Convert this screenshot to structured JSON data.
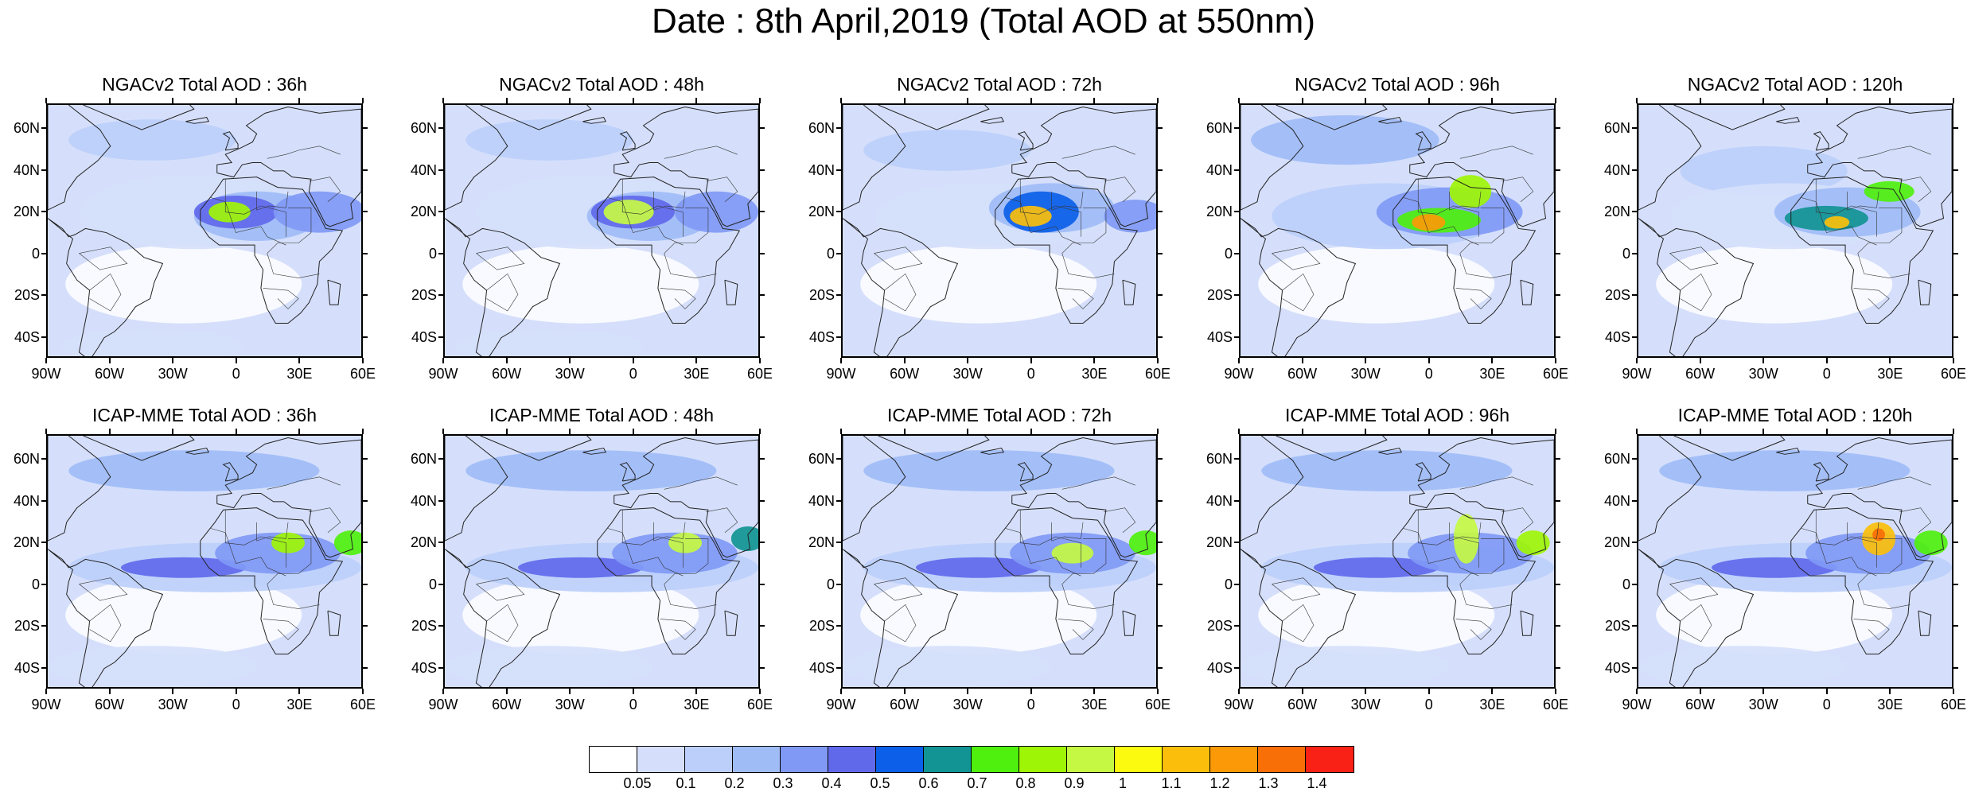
{
  "title": "Date : 8th April,2019 (Total AOD at 550nm)",
  "lat_labels": [
    "60N",
    "40N",
    "20N",
    "0",
    "20S",
    "40S"
  ],
  "lat_values": [
    60,
    40,
    20,
    0,
    -20,
    -40
  ],
  "lon_labels": [
    "90W",
    "60W",
    "30W",
    "0",
    "30E",
    "60E"
  ],
  "lon_values": [
    -90,
    -60,
    -30,
    0,
    30,
    60
  ],
  "map_extent": {
    "lon": [
      -90,
      60
    ],
    "lat": [
      -50,
      72
    ]
  },
  "panels": [
    {
      "title": "NGACv2 Total AOD : 36h",
      "model": "NGACv2",
      "lead": "36h"
    },
    {
      "title": "NGACv2 Total AOD : 48h",
      "model": "NGACv2",
      "lead": "48h"
    },
    {
      "title": "NGACv2 Total AOD : 72h",
      "model": "NGACv2",
      "lead": "72h"
    },
    {
      "title": "NGACv2 Total AOD : 96h",
      "model": "NGACv2",
      "lead": "96h"
    },
    {
      "title": "NGACv2 Total AOD : 120h",
      "model": "NGACv2",
      "lead": "120h"
    },
    {
      "title": "ICAP-MME Total AOD : 36h",
      "model": "ICAP-MME",
      "lead": "36h"
    },
    {
      "title": "ICAP-MME Total AOD : 48h",
      "model": "ICAP-MME",
      "lead": "48h"
    },
    {
      "title": "ICAP-MME Total AOD : 72h",
      "model": "ICAP-MME",
      "lead": "72h"
    },
    {
      "title": "ICAP-MME Total AOD : 96h",
      "model": "ICAP-MME",
      "lead": "96h"
    },
    {
      "title": "ICAP-MME Total AOD : 120h",
      "model": "ICAP-MME",
      "lead": "120h"
    }
  ],
  "colorbar": {
    "colors": [
      "#ffffff",
      "#d5dffb",
      "#bccffb",
      "#9fbcf7",
      "#8099f5",
      "#6169eb",
      "#0b5fe8",
      "#119493",
      "#4ff00d",
      "#9ef506",
      "#c5f843",
      "#fbfa0f",
      "#fbbf0b",
      "#fb9906",
      "#f86e07",
      "#f92115"
    ],
    "labels": [
      "0.05",
      "0.1",
      "0.2",
      "0.3",
      "0.4",
      "0.5",
      "0.6",
      "0.7",
      "0.8",
      "0.9",
      "1",
      "1.1",
      "1.2",
      "1.3",
      "1.4"
    ]
  }
}
